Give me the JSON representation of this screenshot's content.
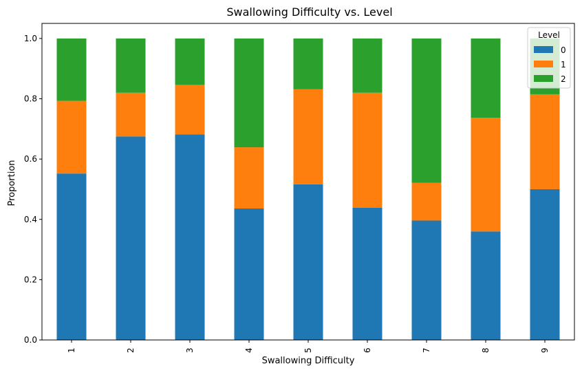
{
  "chart_data": {
    "type": "bar",
    "stacked": true,
    "title": "Swallowing Difficulty vs. Level",
    "xlabel": "Swallowing Difficulty",
    "ylabel": "Proportion",
    "ylim": [
      0,
      1.05
    ],
    "yticks": [
      "0.0",
      "0.2",
      "0.4",
      "0.6",
      "0.8",
      "1.0"
    ],
    "categories": [
      "1",
      "2",
      "3",
      "4",
      "5",
      "6",
      "7",
      "8",
      "9"
    ],
    "legend": {
      "title": "Level",
      "placement": "top-right"
    },
    "series": [
      {
        "name": "0",
        "color": "#1f77b4",
        "values": [
          0.552,
          0.675,
          0.682,
          0.436,
          0.516,
          0.439,
          0.396,
          0.36,
          0.5
        ]
      },
      {
        "name": "1",
        "color": "#ff7f0e",
        "values": [
          0.241,
          0.145,
          0.164,
          0.203,
          0.316,
          0.381,
          0.125,
          0.377,
          0.315
        ]
      },
      {
        "name": "2",
        "color": "#2ca02c",
        "values": [
          0.207,
          0.18,
          0.154,
          0.361,
          0.168,
          0.18,
          0.479,
          0.263,
          0.185
        ]
      }
    ]
  }
}
